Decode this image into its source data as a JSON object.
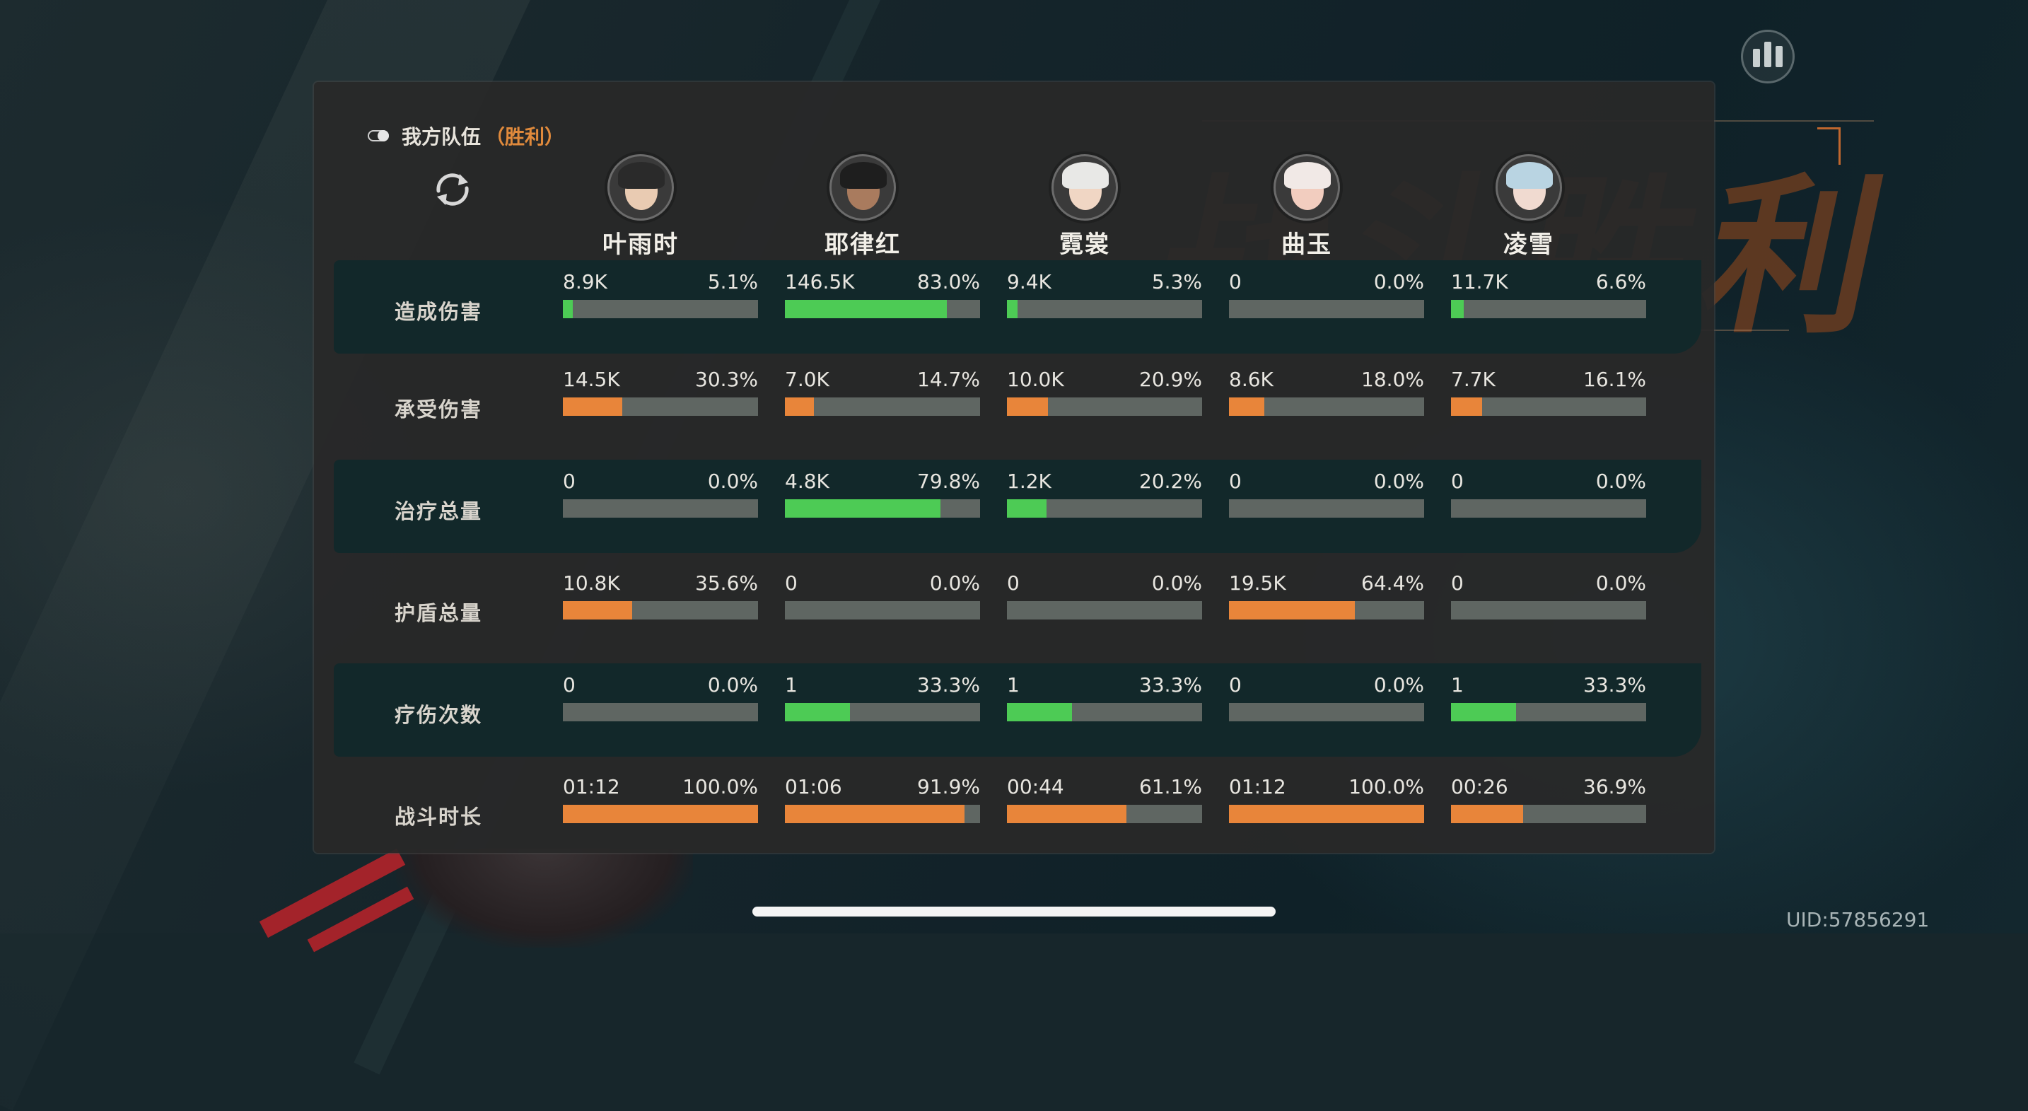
{
  "colors": {
    "accent_orange": "#e8853a",
    "accent_green": "#4dcb55",
    "result_orange": "#e08a3c",
    "track_gray": "#5f6662"
  },
  "header": {
    "team_label": "我方队伍",
    "result": "（胜利）",
    "toggle_icon": "toggle-icon",
    "refresh_icon": "refresh-icon",
    "stats_icon": "bar-chart-icon"
  },
  "heroes": [
    {
      "name": "叶雨时"
    },
    {
      "name": "耶律红"
    },
    {
      "name": "霓裳"
    },
    {
      "name": "曲玉"
    },
    {
      "name": "凌雪"
    }
  ],
  "rows": [
    {
      "label": "造成伤害",
      "color": "green",
      "cells": [
        {
          "value": "8.9K",
          "percent": "5.1%",
          "fraction": 0.051
        },
        {
          "value": "146.5K",
          "percent": "83.0%",
          "fraction": 0.83
        },
        {
          "value": "9.4K",
          "percent": "5.3%",
          "fraction": 0.053
        },
        {
          "value": "0",
          "percent": "0.0%",
          "fraction": 0
        },
        {
          "value": "11.7K",
          "percent": "6.6%",
          "fraction": 0.066
        }
      ]
    },
    {
      "label": "承受伤害",
      "color": "orange",
      "cells": [
        {
          "value": "14.5K",
          "percent": "30.3%",
          "fraction": 0.303
        },
        {
          "value": "7.0K",
          "percent": "14.7%",
          "fraction": 0.147
        },
        {
          "value": "10.0K",
          "percent": "20.9%",
          "fraction": 0.209
        },
        {
          "value": "8.6K",
          "percent": "18.0%",
          "fraction": 0.18
        },
        {
          "value": "7.7K",
          "percent": "16.1%",
          "fraction": 0.161
        }
      ]
    },
    {
      "label": "治疗总量",
      "color": "green",
      "cells": [
        {
          "value": "0",
          "percent": "0.0%",
          "fraction": 0
        },
        {
          "value": "4.8K",
          "percent": "79.8%",
          "fraction": 0.798
        },
        {
          "value": "1.2K",
          "percent": "20.2%",
          "fraction": 0.202
        },
        {
          "value": "0",
          "percent": "0.0%",
          "fraction": 0
        },
        {
          "value": "0",
          "percent": "0.0%",
          "fraction": 0
        }
      ]
    },
    {
      "label": "护盾总量",
      "color": "orange",
      "cells": [
        {
          "value": "10.8K",
          "percent": "35.6%",
          "fraction": 0.356
        },
        {
          "value": "0",
          "percent": "0.0%",
          "fraction": 0
        },
        {
          "value": "0",
          "percent": "0.0%",
          "fraction": 0
        },
        {
          "value": "19.5K",
          "percent": "64.4%",
          "fraction": 0.644
        },
        {
          "value": "0",
          "percent": "0.0%",
          "fraction": 0
        }
      ]
    },
    {
      "label": "疗伤次数",
      "color": "green",
      "cells": [
        {
          "value": "0",
          "percent": "0.0%",
          "fraction": 0
        },
        {
          "value": "1",
          "percent": "33.3%",
          "fraction": 0.333
        },
        {
          "value": "1",
          "percent": "33.3%",
          "fraction": 0.333
        },
        {
          "value": "0",
          "percent": "0.0%",
          "fraction": 0
        },
        {
          "value": "1",
          "percent": "33.3%",
          "fraction": 0.333
        }
      ]
    },
    {
      "label": "战斗时长",
      "color": "orange",
      "cells": [
        {
          "value": "01:12",
          "percent": "100.0%",
          "fraction": 1.0
        },
        {
          "value": "01:06",
          "percent": "91.9%",
          "fraction": 0.919
        },
        {
          "value": "00:44",
          "percent": "61.1%",
          "fraction": 0.611
        },
        {
          "value": "01:12",
          "percent": "100.0%",
          "fraction": 1.0
        },
        {
          "value": "00:26",
          "percent": "36.9%",
          "fraction": 0.369
        }
      ]
    }
  ],
  "footer": {
    "uid": "UID:57856291"
  }
}
